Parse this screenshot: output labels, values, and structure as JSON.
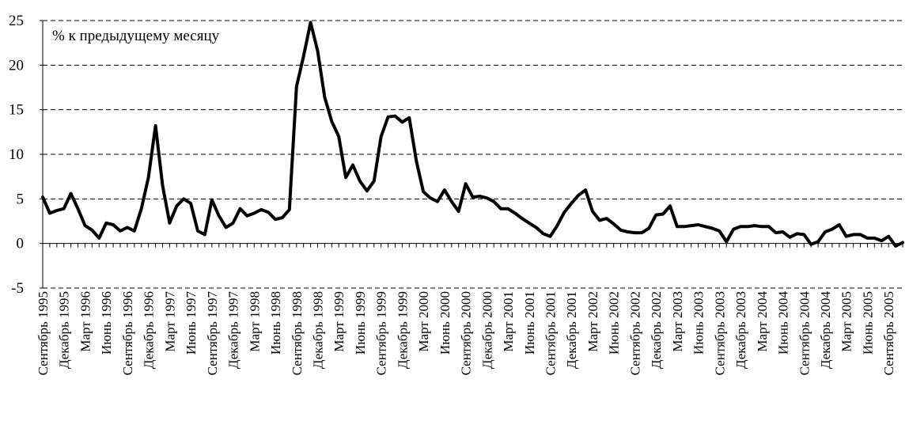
{
  "chart_data": {
    "type": "line",
    "title": "",
    "xlabel": "",
    "ylabel": "",
    "annotation": "% к предыдущему месяцу",
    "ylim": [
      -5,
      25
    ],
    "yticks": [
      25,
      20,
      15,
      10,
      5,
      0,
      -5
    ],
    "grid": true,
    "line_color": "#000000",
    "xtick_labels": [
      "Сентябрь 1995",
      "Декабрь 1995",
      "Март 1996",
      "Июнь 1996",
      "Сентябрь 1996",
      "Декабрь 1996",
      "Март 1997",
      "Июнь 1997",
      "Сентябрь 1997",
      "Декабрь 1997",
      "Март 1998",
      "Июнь 1998",
      "Сентябрь 1998",
      "Декабрь 1998",
      "Март 1999",
      "Июнь 1999",
      "Сентябрь 1999",
      "Декабрь 1999",
      "Март 2000",
      "Июнь 2000",
      "Сентябрь 2000",
      "Декабрь 2000",
      "Март 2001",
      "Июнь 2001",
      "Сентябрь 2001",
      "Декабрь 2001",
      "Март 2002",
      "Июнь 2002",
      "Сентябрь 2002",
      "Декабрь 2002",
      "Март 2003",
      "Июнь 2003",
      "Сентябрь 2003",
      "Декабрь 2003",
      "Март 2004",
      "Июнь 2004",
      "Сентябрь 2004",
      "Декабрь 2004",
      "Март 2005",
      "Июнь 2005",
      "Сентябрь 2005"
    ],
    "series": [
      {
        "values": [
          5.2,
          3.4,
          3.7,
          3.9,
          5.6,
          3.9,
          2.0,
          1.5,
          0.6,
          2.3,
          2.1,
          1.4,
          1.8,
          1.4,
          3.9,
          7.4,
          13.2,
          6.5,
          2.3,
          4.2,
          5.0,
          4.5,
          1.4,
          1.0,
          4.9,
          3.1,
          1.8,
          2.3,
          3.9,
          3.1,
          3.4,
          3.8,
          3.5,
          2.7,
          2.9,
          3.8,
          17.6,
          21.0,
          24.8,
          21.6,
          16.4,
          13.7,
          12.0,
          7.4,
          8.8,
          7.0,
          5.9,
          7.0,
          12.0,
          14.2,
          14.3,
          13.6,
          14.1,
          9.3,
          5.8,
          5.1,
          4.7,
          6.0,
          4.7,
          3.6,
          6.7,
          5.2,
          5.3,
          5.1,
          4.7,
          3.9,
          3.9,
          3.4,
          2.8,
          2.3,
          1.8,
          1.1,
          0.8,
          2.0,
          3.5,
          4.5,
          5.4,
          6.0,
          3.6,
          2.6,
          2.8,
          2.2,
          1.5,
          1.3,
          1.2,
          1.2,
          1.7,
          3.2,
          3.3,
          4.2,
          1.9,
          1.9,
          2.0,
          2.1,
          1.9,
          1.7,
          1.4,
          0.2,
          1.6,
          1.9,
          1.9,
          2.0,
          1.9,
          1.9,
          1.2,
          1.3,
          0.7,
          1.1,
          1.0,
          -0.1,
          0.2,
          1.3,
          1.6,
          2.1,
          0.8,
          1.0,
          1.0,
          0.6,
          0.6,
          0.3,
          0.8,
          -0.3,
          0.1
        ]
      }
    ]
  }
}
